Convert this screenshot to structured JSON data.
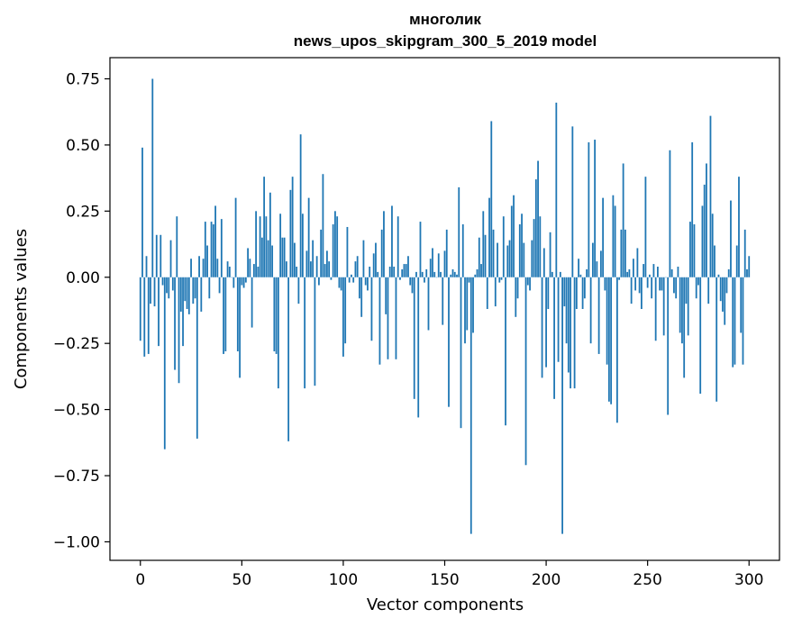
{
  "chart_data": {
    "type": "bar",
    "title_line1": "многолик",
    "title_line2": "news_upos_skipgram_300_5_2019 model",
    "xlabel": "Vector components",
    "ylabel": "Components values",
    "xlim": [
      -15,
      315
    ],
    "ylim": [
      -1.07,
      0.83
    ],
    "x_ticks": [
      0,
      50,
      100,
      150,
      200,
      250,
      300
    ],
    "x_tick_labels": [
      "0",
      "50",
      "100",
      "150",
      "200",
      "250",
      "300"
    ],
    "y_ticks": [
      0.75,
      0.5,
      0.25,
      0.0,
      -0.25,
      -0.5,
      -0.75,
      -1.0
    ],
    "y_tick_labels": [
      "0.75",
      "0.50",
      "0.25",
      "0.00",
      "−0.25",
      "−0.50",
      "−0.75",
      "−1.00"
    ],
    "bar_color": "#1f77b4",
    "values": [
      -0.24,
      0.49,
      -0.3,
      0.08,
      -0.29,
      -0.1,
      0.75,
      -0.11,
      0.16,
      -0.26,
      0.16,
      -0.03,
      -0.65,
      -0.06,
      -0.08,
      0.14,
      -0.05,
      -0.35,
      0.23,
      -0.4,
      -0.13,
      -0.26,
      -0.09,
      -0.12,
      -0.14,
      0.07,
      -0.1,
      -0.08,
      -0.61,
      0.08,
      -0.13,
      0.07,
      0.21,
      0.12,
      -0.08,
      0.21,
      0.2,
      0.27,
      0.07,
      -0.06,
      0.22,
      -0.29,
      -0.28,
      0.06,
      0.04,
      0.0,
      -0.04,
      0.3,
      -0.28,
      -0.38,
      -0.03,
      -0.04,
      -0.02,
      0.11,
      0.07,
      -0.19,
      0.05,
      0.25,
      0.04,
      0.23,
      0.15,
      0.38,
      0.23,
      0.14,
      0.32,
      0.12,
      -0.28,
      -0.29,
      -0.42,
      0.24,
      0.15,
      0.15,
      0.06,
      -0.62,
      0.33,
      0.38,
      0.13,
      0.04,
      -0.1,
      0.54,
      0.24,
      -0.42,
      0.1,
      0.3,
      0.06,
      0.14,
      -0.41,
      0.08,
      -0.03,
      0.18,
      0.39,
      0.05,
      0.1,
      0.06,
      -0.01,
      0.2,
      0.25,
      0.23,
      -0.04,
      -0.05,
      -0.3,
      -0.25,
      0.19,
      -0.02,
      0.01,
      -0.02,
      0.06,
      0.08,
      -0.08,
      -0.15,
      0.14,
      -0.03,
      -0.05,
      0.04,
      -0.24,
      0.09,
      0.13,
      0.02,
      -0.33,
      0.18,
      0.25,
      -0.14,
      -0.31,
      0.04,
      0.27,
      0.04,
      -0.31,
      0.23,
      -0.01,
      0.03,
      0.05,
      0.05,
      0.08,
      -0.03,
      -0.06,
      -0.46,
      0.02,
      -0.53,
      0.21,
      0.02,
      -0.02,
      0.03,
      -0.2,
      0.07,
      0.11,
      0.02,
      0.0,
      0.09,
      0.02,
      -0.18,
      0.1,
      0.18,
      -0.49,
      0.01,
      0.03,
      0.02,
      0.01,
      0.34,
      -0.57,
      0.2,
      -0.25,
      -0.2,
      -0.02,
      -0.97,
      -0.21,
      0.01,
      0.03,
      0.15,
      0.05,
      0.25,
      0.16,
      -0.12,
      0.3,
      0.59,
      0.18,
      -0.11,
      0.13,
      -0.02,
      -0.01,
      0.23,
      -0.56,
      0.12,
      0.14,
      0.27,
      0.31,
      -0.15,
      -0.08,
      0.2,
      0.24,
      0.13,
      -0.71,
      -0.03,
      -0.05,
      0.14,
      0.22,
      0.37,
      0.44,
      0.23,
      -0.38,
      0.11,
      -0.34,
      -0.12,
      0.17,
      0.02,
      -0.46,
      0.66,
      -0.32,
      0.02,
      -0.97,
      -0.11,
      -0.25,
      -0.36,
      -0.42,
      0.57,
      -0.42,
      -0.12,
      0.07,
      0.01,
      -0.12,
      -0.08,
      0.03,
      0.51,
      -0.25,
      0.13,
      0.52,
      0.06,
      -0.29,
      0.1,
      0.3,
      -0.05,
      -0.33,
      -0.47,
      -0.48,
      0.31,
      0.27,
      -0.55,
      -0.01,
      0.18,
      0.43,
      0.18,
      0.02,
      0.03,
      -0.1,
      0.07,
      -0.05,
      0.11,
      -0.06,
      -0.12,
      0.05,
      0.38,
      -0.04,
      0.01,
      -0.08,
      0.05,
      -0.24,
      0.04,
      -0.05,
      -0.05,
      -0.22,
      0.0,
      -0.52,
      0.48,
      0.03,
      -0.06,
      -0.08,
      0.04,
      -0.21,
      -0.25,
      -0.38,
      -0.1,
      -0.22,
      0.21,
      0.51,
      0.2,
      -0.08,
      -0.03,
      -0.44,
      0.27,
      0.35,
      0.43,
      -0.1,
      0.61,
      0.24,
      0.12,
      -0.47,
      0.01,
      -0.09,
      -0.13,
      -0.18,
      -0.06,
      0.03,
      0.29,
      -0.34,
      -0.33,
      0.12,
      0.38,
      -0.21,
      -0.33,
      0.18,
      0.03,
      0.08
    ]
  }
}
